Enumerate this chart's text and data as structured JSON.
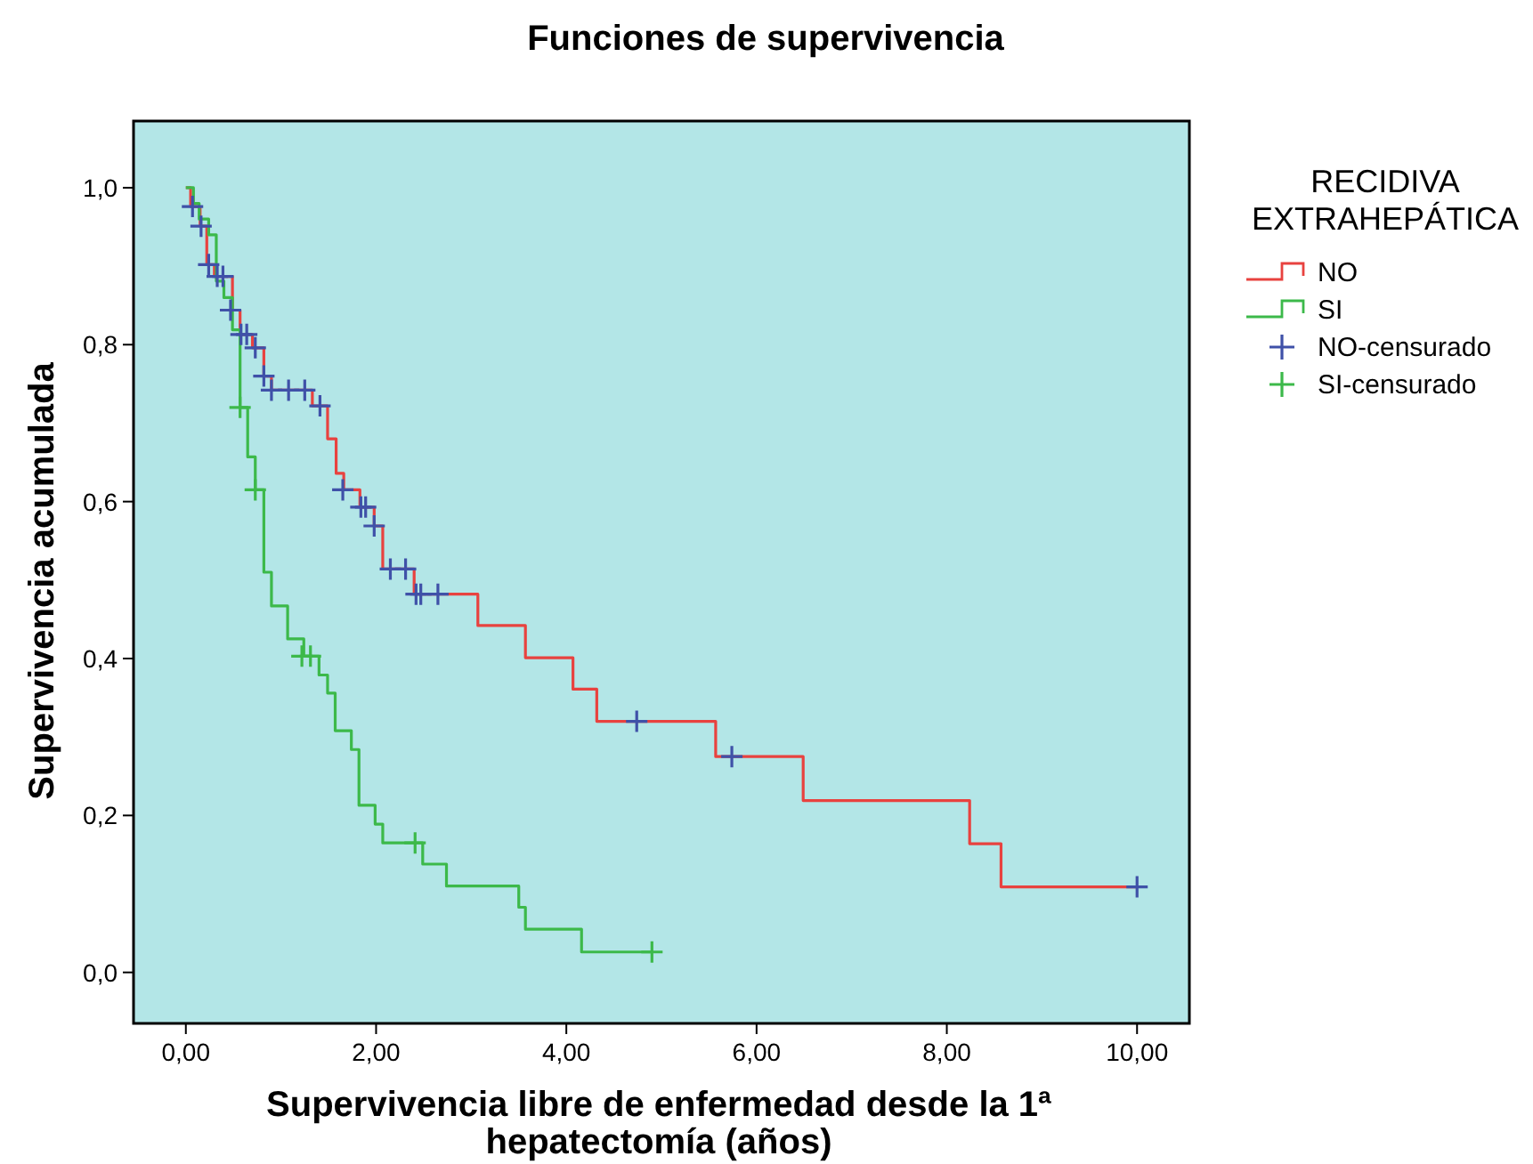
{
  "chart_data": {
    "type": "step",
    "title": "Funciones de supervivencia",
    "xlabel": "Supervivencia libre de enfermedad desde la 1ª hepatectomía (años)",
    "ylabel": "Supervivencia acumulada",
    "legend_title": "RECIDIVA EXTRAHEPÁTICA",
    "legend": "right",
    "grid": false,
    "xlim": [
      -0.55,
      10.55
    ],
    "ylim": [
      -0.065,
      1.085
    ],
    "xticks": [
      {
        "value": 0,
        "label": "0,00"
      },
      {
        "value": 2,
        "label": "2,00"
      },
      {
        "value": 4,
        "label": "4,00"
      },
      {
        "value": 6,
        "label": "6,00"
      },
      {
        "value": 8,
        "label": "8,00"
      },
      {
        "value": 10,
        "label": "10,00"
      }
    ],
    "yticks": [
      {
        "value": 0,
        "label": "0,0"
      },
      {
        "value": 0.2,
        "label": "0,2"
      },
      {
        "value": 0.4,
        "label": "0,4"
      },
      {
        "value": 0.6,
        "label": "0,6"
      },
      {
        "value": 0.8,
        "label": "0,8"
      },
      {
        "value": 1,
        "label": "1,0"
      }
    ],
    "series": [
      {
        "name": "NO",
        "color": "#e8423f",
        "x": [
          0,
          0.05,
          0.15,
          0.22,
          0.3,
          0.49,
          0.57,
          0.7,
          0.82,
          0.9,
          1.33,
          1.49,
          1.58,
          1.66,
          1.83,
          1.98,
          2.07,
          2.4,
          3.07,
          3.57,
          4.07,
          4.32,
          5.57,
          6.49,
          8.24,
          8.57,
          10.0
        ],
        "values": [
          1.0,
          0.976,
          0.951,
          0.902,
          0.887,
          0.844,
          0.813,
          0.796,
          0.76,
          0.742,
          0.722,
          0.68,
          0.636,
          0.615,
          0.593,
          0.569,
          0.514,
          0.482,
          0.442,
          0.401,
          0.361,
          0.32,
          0.275,
          0.219,
          0.164,
          0.109,
          0.109
        ]
      },
      {
        "name": "SI",
        "color": "#3cb94a",
        "x": [
          0,
          0.08,
          0.14,
          0.24,
          0.32,
          0.4,
          0.49,
          0.57,
          0.65,
          0.73,
          0.82,
          0.9,
          1.07,
          1.24,
          1.4,
          1.49,
          1.57,
          1.74,
          1.82,
          1.99,
          2.07,
          2.49,
          2.74,
          3.5,
          3.57,
          4.16,
          4.9
        ],
        "values": [
          1.0,
          0.98,
          0.96,
          0.94,
          0.881,
          0.86,
          0.819,
          0.72,
          0.657,
          0.615,
          0.51,
          0.467,
          0.425,
          0.403,
          0.379,
          0.356,
          0.308,
          0.284,
          0.213,
          0.189,
          0.165,
          0.138,
          0.11,
          0.083,
          0.055,
          0.026,
          0.026
        ]
      },
      {
        "name": "NO-censurado",
        "type": "scatter",
        "marker": "cross",
        "color": "#3f51a8",
        "x": [
          0.07,
          0.16,
          0.24,
          0.33,
          0.39,
          0.47,
          0.58,
          0.64,
          0.73,
          0.82,
          0.9,
          1.08,
          1.25,
          1.41,
          1.65,
          1.84,
          1.89,
          1.98,
          2.15,
          2.31,
          2.42,
          2.47,
          2.65,
          4.74,
          5.74,
          10.0
        ],
        "values": [
          0.976,
          0.951,
          0.902,
          0.887,
          0.887,
          0.844,
          0.813,
          0.813,
          0.796,
          0.76,
          0.742,
          0.742,
          0.742,
          0.722,
          0.615,
          0.593,
          0.593,
          0.569,
          0.514,
          0.514,
          0.482,
          0.482,
          0.482,
          0.32,
          0.275,
          0.109
        ]
      },
      {
        "name": "SI-censurado",
        "type": "scatter",
        "marker": "cross",
        "color": "#3cb94a",
        "x": [
          0.57,
          0.73,
          1.22,
          1.31,
          2.41,
          4.9
        ],
        "values": [
          0.72,
          0.615,
          0.403,
          0.403,
          0.165,
          0.026
        ]
      }
    ]
  }
}
